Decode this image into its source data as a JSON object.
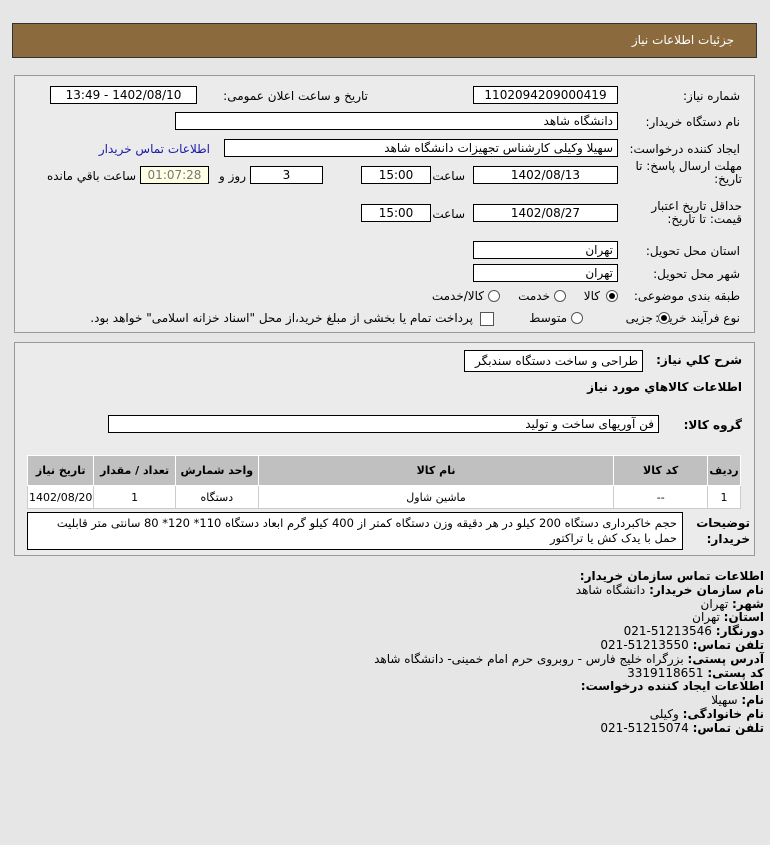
{
  "header": {
    "title": "جزئیات اطلاعات نیاز"
  },
  "form": {
    "need_number_label": "شماره نیاز:",
    "need_number": "1102094209000419",
    "announce_label": "تاریخ و ساعت اعلان عمومی:",
    "announce_value": "1402/08/10 - 13:49",
    "buyer_label": "نام دستگاه خریدار:",
    "buyer": "دانشگاه شاهد",
    "creator_label": "ایجاد کننده درخواست:",
    "creator": "سهیلا وکیلی کارشناس تجهیزات دانشگاه شاهد",
    "contact_link": "اطلاعات تماس خریدار",
    "deadline_label": "مهلت ارسال پاسخ: تا تاریخ:",
    "deadline_date": "1402/08/13",
    "time_label": "ساعت",
    "deadline_time": "15:00",
    "days": "3",
    "days_label": "روز و",
    "remaining": "01:07:28",
    "remaining_label": "ساعت باقي مانده",
    "validity_label": "حداقل تاریخ اعتبار قیمت: تا تاریخ:",
    "validity_date": "1402/08/27",
    "validity_time": "15:00",
    "province_label": "استان محل تحویل:",
    "province": "تهران",
    "city_label": "شهر محل تحویل:",
    "city": "تهران",
    "category_label": "طبقه بندی موضوعی:",
    "category_options": [
      "کالا",
      "خدمت",
      "کالا/خدمت"
    ],
    "category_selected": "کالا",
    "process_label": "نوع فرآیند خرید :",
    "process_options": [
      "جزیی",
      "متوسط"
    ],
    "process_selected": "جزیی",
    "payment_note": "پرداخت تمام یا بخشی از مبلغ خرید،از محل \"اسناد خزانه اسلامی\" خواهد بود.",
    "payment_checked": false
  },
  "goods": {
    "summary_label": "شرح كلي نياز:",
    "summary": "طراحی و ساخت دستگاه سندبگر",
    "section_title": "اطلاعات كالاهاي مورد نياز",
    "group_label": "گروه کالا:",
    "group": "فن آوریهای ساخت و تولید",
    "columns": [
      "ردیف",
      "کد کالا",
      "نام کالا",
      "واحد شمارش",
      "تعداد / مقدار",
      "تاریخ نیاز"
    ],
    "rows": [
      [
        "1",
        "--",
        "ماشین شاول",
        "دستگاه",
        "1",
        "1402/08/20"
      ]
    ],
    "desc_label": "توضیحات خریدار:",
    "desc": "حجم خاکبرداری دستگاه 200 کیلو در هر دقیقه وزن دستگاه کمتر از 400 کیلو گرم ابعاد دستگاه 110* 120* 80 سانتی متر قابلیت حمل با یدک کش یا تراکتور"
  },
  "contact": {
    "org_title": "اطلاعات تماس سازمان خریدار:",
    "org_name_label": "نام سازمان خریدار:",
    "org_name": "دانشگاه شاهد",
    "city_label": "شهر:",
    "city": "تهران",
    "province_label": "استان:",
    "province": "تهران",
    "fax_label": "دورنگار:",
    "fax": "51213546-021",
    "phone_label": "تلفن تماس:",
    "phone": "51213550-021",
    "address_label": "آدرس پستی:",
    "address": "بزرگراه خلیج فارس - روبروی حرم امام خمینی- دانشگاه شاهد",
    "postal_label": "کد پستی:",
    "postal": "3319118651",
    "creator_title": "اطلاعات ایجاد کننده درخواست:",
    "first_label": "نام:",
    "first": "سهیلا",
    "last_label": "نام خانوادگی:",
    "last": "وکیلی",
    "cphone_label": "تلفن تماس:",
    "cphone": "51215074-021"
  }
}
